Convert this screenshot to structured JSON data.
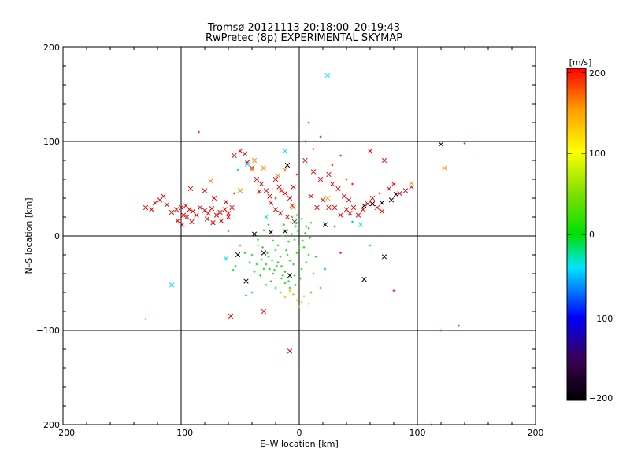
{
  "chart_data": {
    "type": "scatter",
    "title": "Tromsø 20121113 20:18:00–20:19:43",
    "subtitle": "RwPretec (8p) EXPERIMENTAL SKYMAP",
    "xlabel": "E–W location [km]",
    "ylabel": "N–S location [km]",
    "xlim": [
      -200,
      200
    ],
    "ylim": [
      -200,
      200
    ],
    "xticks": [
      -200,
      -100,
      0,
      100,
      200
    ],
    "yticks": [
      -200,
      -100,
      0,
      100,
      200
    ],
    "xtick_labels": [
      "−200",
      "−100",
      "0",
      "100",
      "200"
    ],
    "ytick_labels": [
      "−200",
      "−100",
      "0",
      "100",
      "200"
    ],
    "grid": true,
    "colorbar": {
      "label": "[m/s]",
      "range": [
        -200,
        200
      ],
      "ticks": [
        200,
        100,
        0,
        -100,
        -200
      ],
      "tick_labels": [
        "200",
        "100",
        "0",
        "−100",
        "−200"
      ],
      "colormap": "rainbow (black → purple → blue → cyan → green → yellow → orange → red)"
    },
    "series": [
      {
        "marker": "x",
        "points": [
          [
            -130,
            30
          ],
          [
            -125,
            28
          ],
          [
            -122,
            35
          ],
          [
            -118,
            38
          ],
          [
            -115,
            42
          ],
          [
            -112,
            33
          ],
          [
            -108,
            25
          ],
          [
            -104,
            28
          ],
          [
            -100,
            30
          ],
          [
            -98,
            22
          ],
          [
            -96,
            32
          ],
          [
            -93,
            28
          ],
          [
            -90,
            26
          ],
          [
            -87,
            22
          ],
          [
            -84,
            30
          ],
          [
            -80,
            27
          ],
          [
            -77,
            24
          ],
          [
            -74,
            29
          ],
          [
            -70,
            22
          ],
          [
            -67,
            25
          ],
          [
            -63,
            28
          ],
          [
            -60,
            24
          ],
          [
            -57,
            30
          ],
          [
            -103,
            16
          ],
          [
            -99,
            12
          ],
          [
            -95,
            20
          ],
          [
            -91,
            15
          ],
          [
            -78,
            18
          ],
          [
            -73,
            14
          ],
          [
            -66,
            16
          ],
          [
            -60,
            20
          ],
          [
            -92,
            50
          ],
          [
            -80,
            48
          ],
          [
            -72,
            40
          ],
          [
            -62,
            36
          ],
          [
            -55,
            85
          ],
          [
            -50,
            90
          ],
          [
            -46,
            87
          ],
          [
            -44,
            78
          ],
          [
            -40,
            72
          ],
          [
            -36,
            60
          ],
          [
            -32,
            55
          ],
          [
            -28,
            48
          ],
          [
            -25,
            42
          ],
          [
            -20,
            60
          ],
          [
            -17,
            52
          ],
          [
            -15,
            48
          ],
          [
            -12,
            45
          ],
          [
            -8,
            40
          ],
          [
            -6,
            32
          ],
          [
            -20,
            28
          ],
          [
            -16,
            24
          ],
          [
            -10,
            20
          ],
          [
            -4,
            15
          ],
          [
            5,
            80
          ],
          [
            12,
            68
          ],
          [
            18,
            60
          ],
          [
            25,
            65
          ],
          [
            28,
            55
          ],
          [
            33,
            50
          ],
          [
            38,
            42
          ],
          [
            42,
            38
          ],
          [
            46,
            30
          ],
          [
            50,
            22
          ],
          [
            54,
            28
          ],
          [
            58,
            34
          ],
          [
            62,
            40
          ],
          [
            66,
            30
          ],
          [
            70,
            26
          ],
          [
            76,
            50
          ],
          [
            80,
            55
          ],
          [
            85,
            45
          ],
          [
            90,
            48
          ],
          [
            95,
            52
          ],
          [
            60,
            90
          ],
          [
            72,
            80
          ],
          [
            30,
            30
          ],
          [
            35,
            22
          ],
          [
            40,
            28
          ],
          [
            43,
            24
          ],
          [
            25,
            30
          ],
          [
            20,
            38
          ],
          [
            15,
            30
          ],
          [
            10,
            42
          ],
          [
            -58,
            -85
          ],
          [
            -30,
            -80
          ],
          [
            -8,
            -122
          ],
          [
            -5,
            52
          ],
          [
            -24,
            35
          ],
          [
            -34,
            47
          ]
        ]
      },
      {
        "marker": "x",
        "points": [
          [
            -10,
            75
          ],
          [
            -38,
            80
          ],
          [
            -12,
            70
          ],
          [
            -30,
            72
          ],
          [
            -18,
            64
          ],
          [
            -50,
            48
          ],
          [
            -75,
            58
          ]
        ]
      },
      {
        "marker": "x",
        "points": [
          [
            120,
            97
          ],
          [
            22,
            12
          ],
          [
            -10,
            75
          ],
          [
            55,
            32
          ],
          [
            62,
            34
          ],
          [
            70,
            35
          ],
          [
            78,
            38
          ],
          [
            82,
            44
          ],
          [
            -38,
            2
          ],
          [
            -24,
            4
          ],
          [
            -30,
            -18
          ],
          [
            -45,
            -48
          ],
          [
            -12,
            5
          ],
          [
            -52,
            -20
          ],
          [
            -8,
            -42
          ],
          [
            55,
            -46
          ],
          [
            72,
            -22
          ]
        ]
      },
      {
        "marker": "x",
        "points": [
          [
            24,
            170
          ],
          [
            -12,
            90
          ],
          [
            -62,
            -24
          ],
          [
            -108,
            -52
          ],
          [
            52,
            12
          ],
          [
            -28,
            20
          ],
          [
            -44,
            76
          ],
          [
            -2,
            14
          ]
        ]
      },
      {
        "marker": "x",
        "points": [
          [
            123,
            72
          ],
          [
            95,
            56
          ],
          [
            24,
            40
          ],
          [
            -5,
            30
          ],
          [
            -40,
            70
          ]
        ]
      },
      {
        "marker": "dot",
        "points": [
          [
            -60,
            5
          ],
          [
            -35,
            -10
          ],
          [
            -32,
            -25
          ],
          [
            -28,
            -30
          ],
          [
            -25,
            -35
          ],
          [
            -22,
            -40
          ],
          [
            -18,
            -28
          ],
          [
            -15,
            -32
          ],
          [
            -12,
            -38
          ],
          [
            -10,
            -20
          ],
          [
            -8,
            -26
          ],
          [
            -5,
            -30
          ],
          [
            -2,
            -18
          ],
          [
            0,
            -12
          ],
          [
            3,
            -5
          ],
          [
            5,
            3
          ],
          [
            8,
            8
          ],
          [
            10,
            14
          ],
          [
            -3,
            10
          ],
          [
            -6,
            2
          ],
          [
            -9,
            -6
          ],
          [
            -20,
            -15
          ],
          [
            -26,
            -22
          ],
          [
            -30,
            -35
          ],
          [
            -33,
            -42
          ],
          [
            -36,
            -30
          ],
          [
            -40,
            -20
          ],
          [
            -15,
            -45
          ],
          [
            -12,
            -50
          ],
          [
            -8,
            -55
          ],
          [
            -4,
            -42
          ],
          [
            2,
            -35
          ],
          [
            6,
            -28
          ],
          [
            12,
            -40
          ],
          [
            14,
            -22
          ],
          [
            -18,
            -10
          ],
          [
            -22,
            -5
          ],
          [
            -14,
            0
          ],
          [
            -10,
            6
          ],
          [
            -2,
            22
          ],
          [
            2,
            18
          ],
          [
            -6,
            20
          ],
          [
            -24,
            -48
          ],
          [
            -28,
            -52
          ],
          [
            -20,
            -55
          ],
          [
            -16,
            -60
          ],
          [
            -38,
            -38
          ],
          [
            -42,
            -28
          ],
          [
            -46,
            -18
          ],
          [
            -50,
            -10
          ],
          [
            -4,
            -4
          ],
          [
            4,
            -12
          ],
          [
            8,
            -20
          ],
          [
            -1,
            5
          ],
          [
            -7,
            14
          ],
          [
            -13,
            12
          ],
          [
            6,
            10
          ],
          [
            9,
            -2
          ],
          [
            -19,
            -32
          ],
          [
            -23,
            -26
          ],
          [
            -27,
            -18
          ],
          [
            -31,
            -12
          ],
          [
            -35,
            -4
          ],
          [
            -30,
            6
          ],
          [
            -26,
            12
          ],
          [
            -11,
            -15
          ],
          [
            -16,
            -22
          ],
          [
            -21,
            -36
          ],
          [
            -14,
            -42
          ],
          [
            -9,
            -48
          ],
          [
            -3,
            -52
          ],
          [
            1,
            -45
          ],
          [
            -130,
            -88
          ],
          [
            -56,
            -36
          ],
          [
            18,
            -55
          ],
          [
            10,
            -60
          ]
        ]
      },
      {
        "marker": "dot",
        "points": [
          [
            -5,
            -62
          ],
          [
            -2,
            -68
          ],
          [
            2,
            -70
          ],
          [
            -8,
            -58
          ],
          [
            0,
            -75
          ],
          [
            4,
            -64
          ],
          [
            -12,
            -65
          ],
          [
            8,
            -72
          ]
        ]
      },
      {
        "marker": "dot",
        "points": [
          [
            -85,
            110
          ],
          [
            5,
            100
          ],
          [
            8,
            120
          ],
          [
            12,
            92
          ],
          [
            28,
            75
          ],
          [
            35,
            85
          ],
          [
            40,
            60
          ],
          [
            45,
            55
          ],
          [
            68,
            45
          ],
          [
            140,
            98
          ],
          [
            135,
            -95
          ],
          [
            120,
            -100
          ],
          [
            112,
            -200
          ],
          [
            80,
            -58
          ],
          [
            30,
            10
          ],
          [
            35,
            -18
          ],
          [
            -60,
            20
          ],
          [
            -55,
            45
          ],
          [
            -20,
            40
          ],
          [
            -2,
            65
          ],
          [
            18,
            105
          ]
        ]
      },
      {
        "marker": "dot",
        "points": [
          [
            -54,
            -32
          ],
          [
            -45,
            -63
          ],
          [
            -40,
            -60
          ],
          [
            -52,
            70
          ],
          [
            22,
            -35
          ],
          [
            45,
            15
          ],
          [
            60,
            -10
          ]
        ]
      }
    ]
  }
}
